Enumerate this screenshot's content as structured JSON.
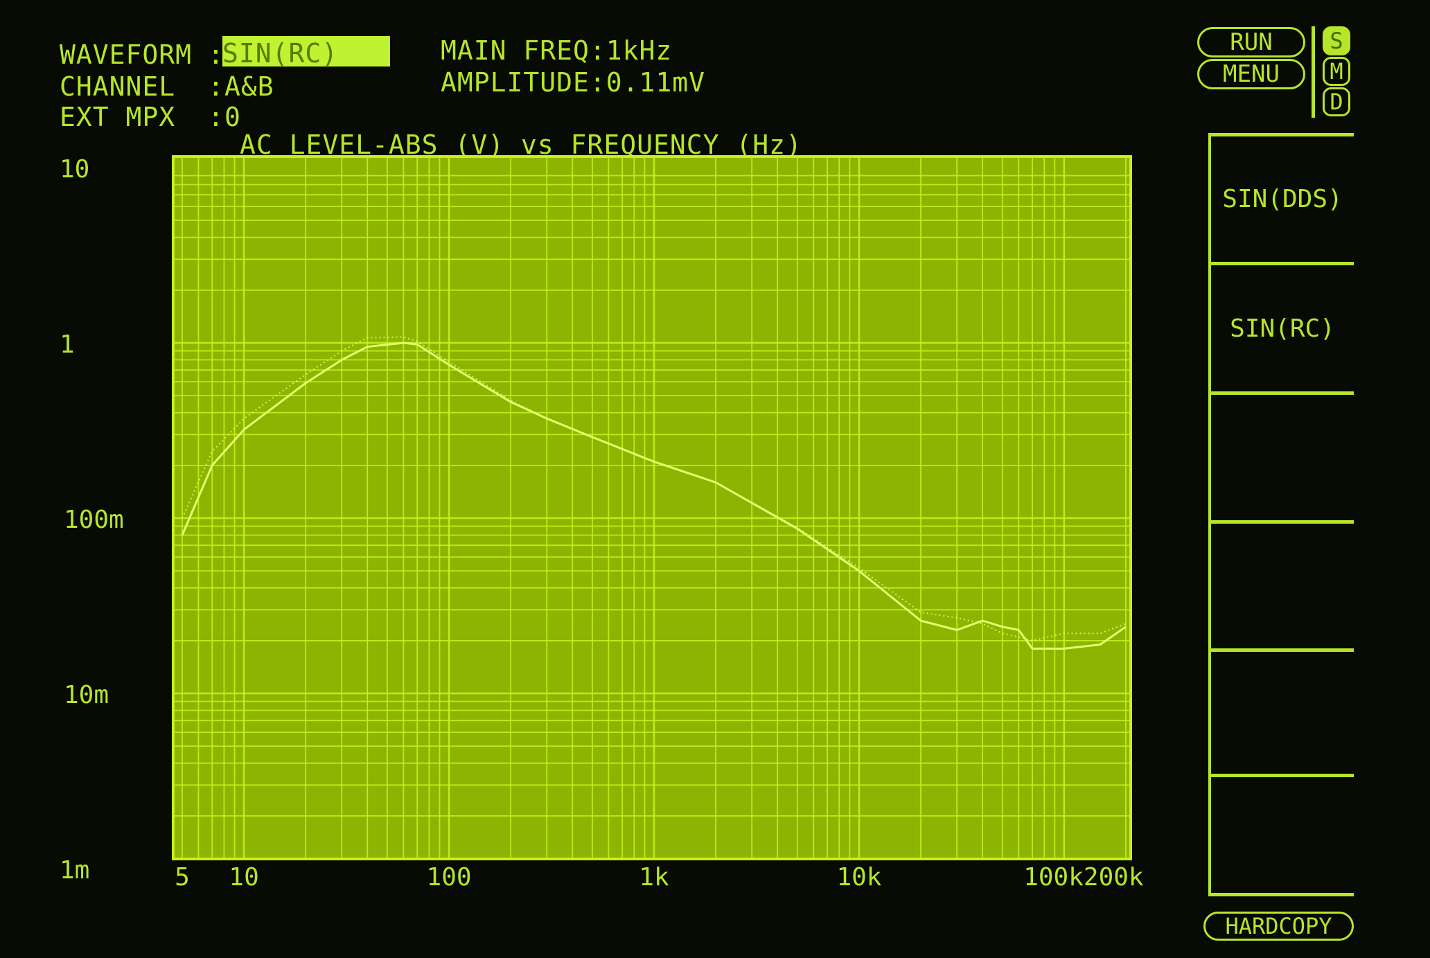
{
  "header": {
    "waveform_label": "WAVEFORM",
    "waveform_value": "SIN(RC)",
    "channel_label": "CHANNEL",
    "channel_value": "A&B",
    "extmpx_label": "EXT MPX",
    "extmpx_value": "0",
    "separator": ":",
    "main_freq": "MAIN FREQ:1kHz",
    "amplitude": "AMPLITUDE:0.11mV"
  },
  "controls": {
    "run": "RUN",
    "menu": "MENU",
    "modes": [
      {
        "label": "S",
        "active": true
      },
      {
        "label": "M",
        "active": false
      },
      {
        "label": "D",
        "active": false
      }
    ],
    "softkeys": [
      "SIN(DDS)",
      "SIN(RC)",
      "",
      "",
      "",
      ""
    ],
    "hardcopy": "HARDCOPY"
  },
  "colors": {
    "background": "#080a04",
    "plot": "#8db400",
    "grid": "#c6f020",
    "trace": "#e2ff70",
    "text": "#b6e62a"
  },
  "chart_data": {
    "type": "line",
    "title": "AC LEVEL-ABS (V) vs FREQUENCY (Hz)",
    "x_scale": "log",
    "y_scale": "log",
    "xlim": [
      5,
      200000
    ],
    "ylim": [
      0.001,
      10
    ],
    "grid": true,
    "x_ticks": [
      {
        "v": 5,
        "label": "5"
      },
      {
        "v": 10,
        "label": "10"
      },
      {
        "v": 100,
        "label": "100"
      },
      {
        "v": 1000,
        "label": "1k"
      },
      {
        "v": 10000,
        "label": "10k"
      },
      {
        "v": 100000,
        "label": "100k"
      },
      {
        "v": 200000,
        "label": "200k"
      }
    ],
    "y_ticks": [
      {
        "v": 10,
        "label": "10"
      },
      {
        "v": 1,
        "label": "1"
      },
      {
        "v": 0.1,
        "label": "100m"
      },
      {
        "v": 0.01,
        "label": "10m"
      },
      {
        "v": 0.001,
        "label": "1m"
      }
    ],
    "series": [
      {
        "style": "solid",
        "x": [
          5,
          7,
          10,
          20,
          30,
          40,
          60,
          70,
          100,
          200,
          300,
          500,
          1000,
          2000,
          5000,
          10000,
          20000,
          30000,
          40000,
          50000,
          60000,
          70000,
          100000,
          150000,
          200000
        ],
        "y": [
          0.08,
          0.2,
          0.32,
          0.59,
          0.8,
          0.95,
          1.0,
          0.98,
          0.75,
          0.46,
          0.37,
          0.29,
          0.21,
          0.16,
          0.087,
          0.05,
          0.026,
          0.023,
          0.026,
          0.024,
          0.023,
          0.018,
          0.018,
          0.019,
          0.024
        ]
      },
      {
        "style": "dotted",
        "x": [
          5,
          7,
          10,
          20,
          30,
          40,
          60,
          70,
          100,
          200,
          300,
          500,
          1000,
          2000,
          5000,
          10000,
          20000,
          30000,
          40000,
          50000,
          60000,
          70000,
          100000,
          150000,
          200000
        ],
        "y": [
          0.1,
          0.24,
          0.37,
          0.66,
          0.9,
          1.07,
          1.08,
          1.02,
          0.78,
          0.47,
          0.37,
          0.29,
          0.21,
          0.16,
          0.088,
          0.052,
          0.029,
          0.027,
          0.025,
          0.022,
          0.021,
          0.02,
          0.022,
          0.022,
          0.025
        ]
      }
    ]
  }
}
